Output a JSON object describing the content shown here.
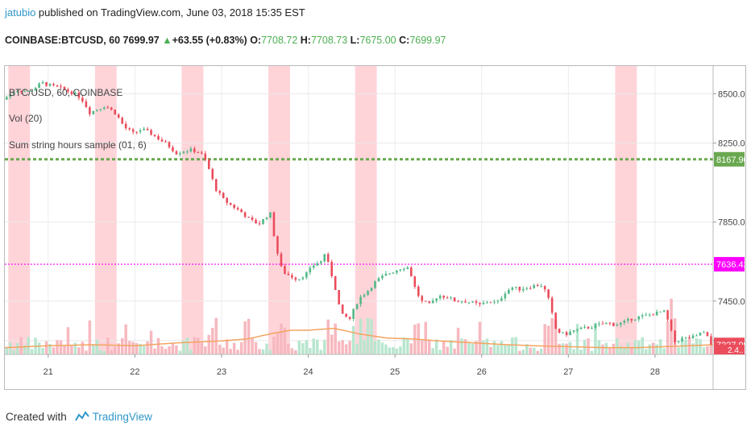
{
  "header": {
    "username": "jatubio",
    "published": " published on TradingView.com, June 03, 2018 15:35 EST"
  },
  "ticker": {
    "symbol": "COINBASE:BTCUSD, 60 ",
    "last": "7699.97",
    "change": "+63.55 (+0.83%)",
    "o_label": "O:",
    "o": "7708.72",
    "h_label": "H:",
    "h": "7708.73",
    "l_label": "L:",
    "l": "7675.00",
    "c_label": "C:",
    "c": "7699.97"
  },
  "legend": {
    "main": "BTC/USD, 60, COINBASE",
    "vol": "Vol (20)",
    "indicator": "Sum string hours sample (01, 6)"
  },
  "footer": {
    "created_with": "Created with",
    "brand": "TradingView"
  },
  "colors": {
    "up": "#53b987",
    "down": "#eb4d5c",
    "highlight": "#ffcdd2",
    "hline_green": "#6aa84f",
    "hline_magenta": "#ff00ff",
    "vol_ma": "#f4a460",
    "price_label": "#eb4d5c"
  },
  "chart_data": {
    "type": "candlestick",
    "y_ticks": [
      8500,
      8250,
      7850,
      7450,
      7250
    ],
    "y_tick_labels": [
      "8500.00",
      "8250.00",
      "7850.00",
      "7450.00",
      "7250.00"
    ],
    "x_tick_labels": [
      "21",
      "22",
      "23",
      "24",
      "25",
      "26",
      "27",
      "28"
    ],
    "ylim": [
      7180,
      8640
    ],
    "xlim": [
      20.5,
      28.67
    ],
    "price_labels": [
      {
        "value": 8167.9,
        "text": "8167.90",
        "color": "#6aa84f"
      },
      {
        "value": 7636.42,
        "text": "7636.42",
        "color": "#ff00ff"
      },
      {
        "value": 7227.99,
        "text": "7227.99",
        "color": "#eb4d5c"
      }
    ],
    "partial_label": "2.4..",
    "hlines": [
      {
        "value": 8167.9,
        "style": "dotted",
        "color": "#6aa84f"
      },
      {
        "value": 7636.42,
        "style": "dotted",
        "color": "#ff00ff"
      }
    ],
    "highlight_bands": [
      [
        20.54,
        20.79
      ],
      [
        21.54,
        21.79
      ],
      [
        22.54,
        22.79
      ],
      [
        23.54,
        23.79
      ],
      [
        24.54,
        24.79
      ],
      [
        27.54,
        27.79
      ]
    ],
    "close_path": [
      [
        20.5,
        8470
      ],
      [
        20.65,
        8520
      ],
      [
        20.8,
        8510
      ],
      [
        20.95,
        8555
      ],
      [
        21.05,
        8540
      ],
      [
        21.15,
        8530
      ],
      [
        21.3,
        8505
      ],
      [
        21.4,
        8480
      ],
      [
        21.5,
        8405
      ],
      [
        21.58,
        8420
      ],
      [
        21.68,
        8440
      ],
      [
        21.8,
        8400
      ],
      [
        21.9,
        8330
      ],
      [
        22.0,
        8300
      ],
      [
        22.1,
        8320
      ],
      [
        22.2,
        8300
      ],
      [
        22.3,
        8270
      ],
      [
        22.4,
        8240
      ],
      [
        22.5,
        8200
      ],
      [
        22.58,
        8210
      ],
      [
        22.68,
        8215
      ],
      [
        22.78,
        8200
      ],
      [
        22.85,
        8150
      ],
      [
        22.95,
        8020
      ],
      [
        23.05,
        7960
      ],
      [
        23.15,
        7930
      ],
      [
        23.25,
        7900
      ],
      [
        23.35,
        7860
      ],
      [
        23.45,
        7840
      ],
      [
        23.52,
        7870
      ],
      [
        23.58,
        7900
      ],
      [
        23.65,
        7720
      ],
      [
        23.72,
        7600
      ],
      [
        23.8,
        7580
      ],
      [
        23.9,
        7560
      ],
      [
        24.0,
        7590
      ],
      [
        24.1,
        7640
      ],
      [
        24.17,
        7650
      ],
      [
        24.2,
        7700
      ],
      [
        24.25,
        7640
      ],
      [
        24.32,
        7540
      ],
      [
        24.4,
        7380
      ],
      [
        24.5,
        7360
      ],
      [
        24.6,
        7460
      ],
      [
        24.7,
        7500
      ],
      [
        24.8,
        7550
      ],
      [
        24.9,
        7580
      ],
      [
        25.0,
        7600
      ],
      [
        25.1,
        7620
      ],
      [
        25.18,
        7620
      ],
      [
        25.25,
        7520
      ],
      [
        25.32,
        7450
      ],
      [
        25.42,
        7430
      ],
      [
        25.52,
        7480
      ],
      [
        25.62,
        7470
      ],
      [
        25.72,
        7450
      ],
      [
        25.82,
        7450
      ],
      [
        25.92,
        7440
      ],
      [
        26.0,
        7430
      ],
      [
        26.1,
        7450
      ],
      [
        26.2,
        7440
      ],
      [
        26.3,
        7500
      ],
      [
        26.38,
        7520
      ],
      [
        26.45,
        7510
      ],
      [
        26.55,
        7520
      ],
      [
        26.65,
        7530
      ],
      [
        26.72,
        7530
      ],
      [
        26.78,
        7480
      ],
      [
        26.88,
        7300
      ],
      [
        26.98,
        7280
      ],
      [
        27.08,
        7300
      ],
      [
        27.18,
        7310
      ],
      [
        27.28,
        7320
      ],
      [
        27.38,
        7330
      ],
      [
        27.48,
        7340
      ],
      [
        27.55,
        7330
      ],
      [
        27.65,
        7340
      ],
      [
        27.75,
        7360
      ],
      [
        27.85,
        7370
      ],
      [
        27.95,
        7380
      ],
      [
        28.05,
        7390
      ],
      [
        28.12,
        7400
      ],
      [
        28.18,
        7340
      ],
      [
        28.24,
        7240
      ],
      [
        28.32,
        7260
      ],
      [
        28.42,
        7265
      ],
      [
        28.5,
        7270
      ],
      [
        28.56,
        7300
      ],
      [
        28.62,
        7270
      ],
      [
        28.67,
        7228
      ]
    ],
    "volume_ma_path": [
      [
        20.5,
        7
      ],
      [
        21.0,
        9
      ],
      [
        21.5,
        10
      ],
      [
        22.0,
        9
      ],
      [
        22.5,
        12
      ],
      [
        23.0,
        14
      ],
      [
        23.3,
        16
      ],
      [
        23.6,
        22
      ],
      [
        23.8,
        25
      ],
      [
        24.0,
        25
      ],
      [
        24.3,
        27
      ],
      [
        24.6,
        21
      ],
      [
        24.9,
        17
      ],
      [
        25.2,
        16
      ],
      [
        25.5,
        14
      ],
      [
        25.9,
        12
      ],
      [
        26.3,
        10
      ],
      [
        26.6,
        9
      ],
      [
        27.0,
        8
      ],
      [
        27.4,
        7
      ],
      [
        27.8,
        7
      ],
      [
        28.1,
        8
      ],
      [
        28.4,
        9
      ],
      [
        28.67,
        10
      ]
    ]
  }
}
